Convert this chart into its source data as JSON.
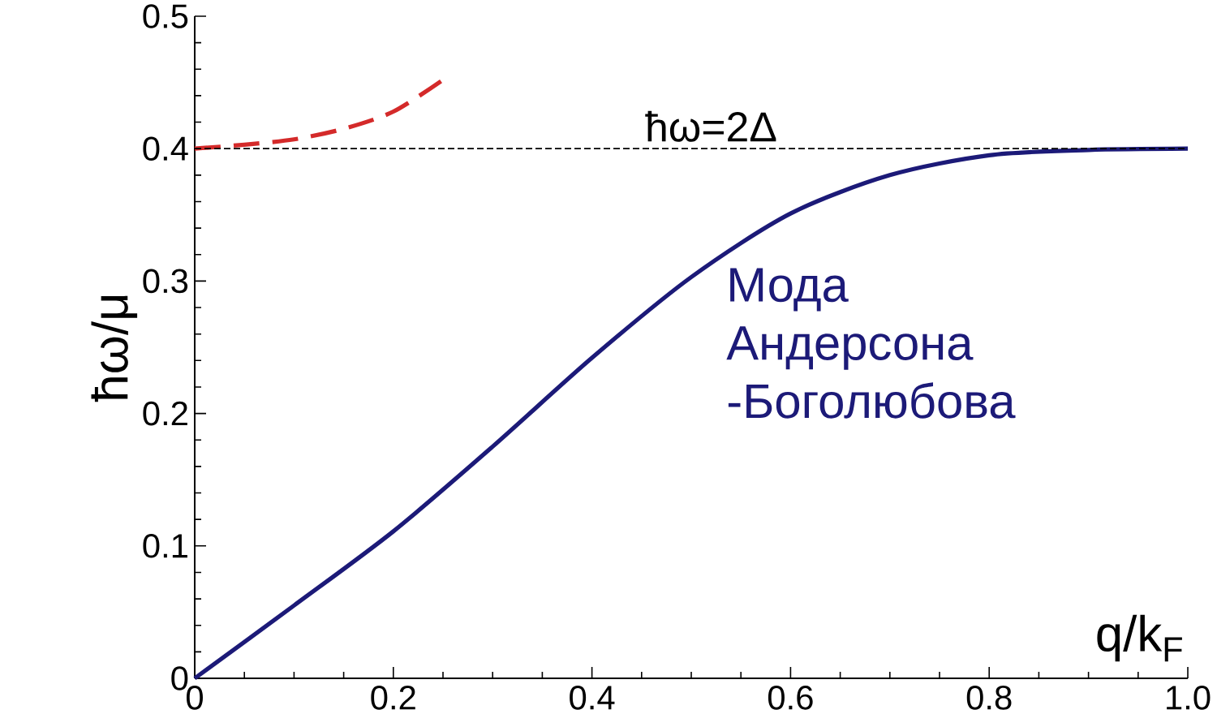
{
  "chart_data": {
    "type": "line",
    "xlabel": "q/k$_{F}$",
    "ylabel": "ħω/μ",
    "xlim": [
      0,
      1.0
    ],
    "ylim": [
      0,
      0.5
    ],
    "xticks": [
      0,
      0.2,
      0.4,
      0.6,
      0.8,
      {
        "value": 1.0,
        "label": "1.0"
      }
    ],
    "yticks": [
      0,
      0.1,
      0.2,
      0.3,
      0.4,
      0.5
    ],
    "grid": false,
    "marker": "none",
    "series": [
      {
        "color": "#1c1a78",
        "line_style": "solid",
        "x": [
          0,
          0.1,
          0.2,
          0.3,
          0.4,
          0.5,
          0.6,
          0.7,
          0.8,
          0.9,
          1.0
        ],
        "values": [
          0,
          0.055,
          0.111,
          0.175,
          0.242,
          0.303,
          0.351,
          0.38,
          0.395,
          0.399,
          0.4
        ]
      },
      {
        "color": "#d42a2a",
        "line_style": "dashed",
        "x": [
          0,
          0.05,
          0.1,
          0.15,
          0.2,
          0.25
        ],
        "values": [
          0.4,
          0.403,
          0.407,
          0.415,
          0.428,
          0.452
        ]
      }
    ],
    "ref_lines": [
      {
        "axis": "y",
        "value": 0.4,
        "color": "#000000",
        "line_style": "dashed"
      }
    ],
    "annotations": [
      {
        "text": "ħω=2Δ",
        "x": 0.52,
        "y": 0.4
      },
      "Мода Андерсона -Боголюбова"
    ]
  }
}
